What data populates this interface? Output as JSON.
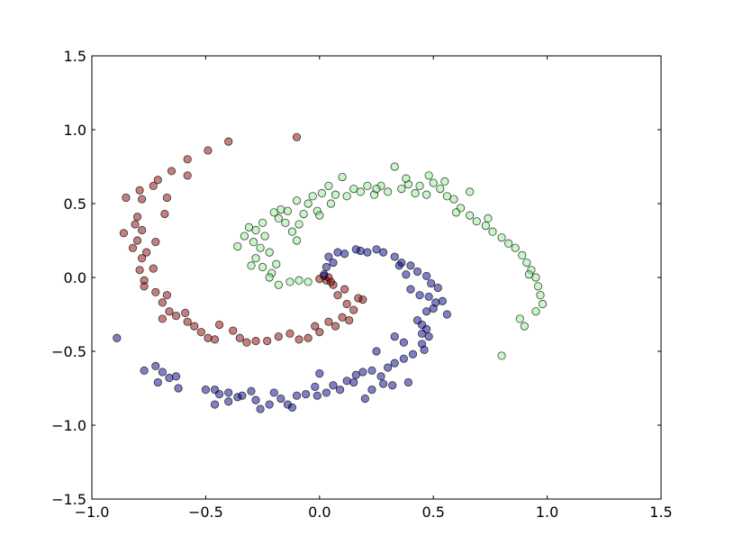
{
  "chart_data": {
    "type": "scatter",
    "title": "",
    "xlabel": "",
    "ylabel": "",
    "xlim": [
      -1.0,
      1.5
    ],
    "ylim": [
      -1.5,
      1.5
    ],
    "x_ticks": [
      "−1.0",
      "−0.5",
      "0.0",
      "0.5",
      "1.0",
      "1.5"
    ],
    "y_ticks": [
      "−1.5",
      "−1.0",
      "−0.5",
      "0.0",
      "0.5",
      "1.0",
      "1.5"
    ],
    "x_tick_values": [
      -1.0,
      -0.5,
      0.0,
      0.5,
      1.0,
      1.5
    ],
    "y_tick_values": [
      -1.5,
      -1.0,
      -0.5,
      0.0,
      0.5,
      1.0,
      1.5
    ],
    "grid": false,
    "series": [
      {
        "color": "#8b0000",
        "points": [
          [
            -0.1,
            0.95
          ],
          [
            -0.4,
            0.92
          ],
          [
            -0.49,
            0.86
          ],
          [
            -0.58,
            0.8
          ],
          [
            -0.65,
            0.72
          ],
          [
            -0.58,
            0.69
          ],
          [
            -0.71,
            0.66
          ],
          [
            -0.73,
            0.62
          ],
          [
            -0.79,
            0.59
          ],
          [
            -0.85,
            0.54
          ],
          [
            -0.78,
            0.53
          ],
          [
            -0.67,
            0.54
          ],
          [
            -0.68,
            0.43
          ],
          [
            -0.8,
            0.41
          ],
          [
            -0.81,
            0.36
          ],
          [
            -0.78,
            0.32
          ],
          [
            -0.86,
            0.3
          ],
          [
            -0.8,
            0.25
          ],
          [
            -0.82,
            0.2
          ],
          [
            -0.72,
            0.24
          ],
          [
            -0.76,
            0.17
          ],
          [
            -0.78,
            0.13
          ],
          [
            -0.79,
            0.05
          ],
          [
            -0.73,
            0.06
          ],
          [
            -0.77,
            -0.02
          ],
          [
            -0.77,
            -0.06
          ],
          [
            -0.72,
            -0.1
          ],
          [
            -0.69,
            -0.17
          ],
          [
            -0.67,
            -0.12
          ],
          [
            -0.66,
            -0.23
          ],
          [
            -0.69,
            -0.28
          ],
          [
            -0.63,
            -0.26
          ],
          [
            -0.59,
            -0.24
          ],
          [
            -0.58,
            -0.3
          ],
          [
            -0.55,
            -0.33
          ],
          [
            -0.52,
            -0.37
          ],
          [
            -0.49,
            -0.41
          ],
          [
            -0.46,
            -0.42
          ],
          [
            -0.44,
            -0.32
          ],
          [
            -0.38,
            -0.36
          ],
          [
            -0.35,
            -0.41
          ],
          [
            -0.32,
            -0.44
          ],
          [
            -0.28,
            -0.43
          ],
          [
            -0.23,
            -0.43
          ],
          [
            -0.18,
            -0.4
          ],
          [
            -0.13,
            -0.38
          ],
          [
            -0.09,
            -0.42
          ],
          [
            -0.05,
            -0.41
          ],
          [
            -0.02,
            -0.33
          ],
          [
            0.0,
            -0.37
          ],
          [
            0.04,
            -0.3
          ],
          [
            0.07,
            -0.33
          ],
          [
            0.1,
            -0.27
          ],
          [
            0.13,
            -0.29
          ],
          [
            0.15,
            -0.22
          ],
          [
            0.19,
            -0.15
          ],
          [
            0.12,
            -0.18
          ],
          [
            0.08,
            -0.12
          ],
          [
            0.06,
            -0.05
          ],
          [
            0.03,
            -0.02
          ],
          [
            0.0,
            -0.01
          ],
          [
            0.02,
            0.01
          ],
          [
            0.04,
            0.0
          ],
          [
            0.05,
            -0.03
          ],
          [
            0.17,
            -0.14
          ],
          [
            0.11,
            -0.08
          ]
        ]
      },
      {
        "color": "#00008b",
        "points": [
          [
            -0.89,
            -0.41
          ],
          [
            -0.77,
            -0.63
          ],
          [
            -0.72,
            -0.6
          ],
          [
            -0.69,
            -0.64
          ],
          [
            -0.66,
            -0.68
          ],
          [
            -0.63,
            -0.67
          ],
          [
            -0.71,
            -0.71
          ],
          [
            -0.62,
            -0.75
          ],
          [
            -0.5,
            -0.76
          ],
          [
            -0.46,
            -0.76
          ],
          [
            -0.44,
            -0.79
          ],
          [
            -0.4,
            -0.78
          ],
          [
            -0.36,
            -0.81
          ],
          [
            -0.46,
            -0.86
          ],
          [
            -0.4,
            -0.84
          ],
          [
            -0.34,
            -0.8
          ],
          [
            -0.3,
            -0.77
          ],
          [
            -0.28,
            -0.83
          ],
          [
            -0.26,
            -0.89
          ],
          [
            -0.22,
            -0.86
          ],
          [
            -0.2,
            -0.78
          ],
          [
            -0.17,
            -0.82
          ],
          [
            -0.14,
            -0.86
          ],
          [
            -0.12,
            -0.88
          ],
          [
            -0.1,
            -0.8
          ],
          [
            -0.06,
            -0.79
          ],
          [
            -0.02,
            -0.74
          ],
          [
            0.0,
            -0.65
          ],
          [
            0.03,
            -0.78
          ],
          [
            0.06,
            -0.73
          ],
          [
            0.09,
            -0.76
          ],
          [
            0.12,
            -0.7
          ],
          [
            0.15,
            -0.71
          ],
          [
            0.19,
            -0.64
          ],
          [
            0.23,
            -0.63
          ],
          [
            0.27,
            -0.67
          ],
          [
            0.3,
            -0.61
          ],
          [
            0.33,
            -0.58
          ],
          [
            0.28,
            -0.72
          ],
          [
            0.32,
            -0.73
          ],
          [
            0.37,
            -0.55
          ],
          [
            0.41,
            -0.52
          ],
          [
            0.45,
            -0.45
          ],
          [
            0.46,
            -0.49
          ],
          [
            0.37,
            -0.44
          ],
          [
            0.33,
            -0.4
          ],
          [
            0.25,
            -0.5
          ],
          [
            0.45,
            -0.38
          ],
          [
            0.48,
            -0.4
          ],
          [
            0.47,
            -0.35
          ],
          [
            0.45,
            -0.32
          ],
          [
            0.43,
            -0.29
          ],
          [
            0.47,
            -0.23
          ],
          [
            0.5,
            -0.21
          ],
          [
            0.51,
            -0.17
          ],
          [
            0.48,
            -0.13
          ],
          [
            0.52,
            -0.07
          ],
          [
            0.49,
            -0.04
          ],
          [
            0.47,
            0.01
          ],
          [
            0.43,
            0.04
          ],
          [
            0.4,
            0.08
          ],
          [
            0.36,
            0.1
          ],
          [
            0.33,
            0.14
          ],
          [
            0.28,
            0.17
          ],
          [
            0.25,
            0.19
          ],
          [
            0.21,
            0.17
          ],
          [
            0.18,
            0.18
          ],
          [
            0.16,
            0.19
          ],
          [
            0.11,
            0.16
          ],
          [
            0.08,
            0.17
          ],
          [
            0.04,
            0.14
          ],
          [
            0.03,
            0.07
          ],
          [
            0.06,
            0.1
          ],
          [
            0.02,
            0.02
          ],
          [
            0.35,
            0.08
          ],
          [
            0.54,
            -0.16
          ],
          [
            0.56,
            -0.25
          ],
          [
            0.44,
            -0.12
          ],
          [
            0.4,
            -0.08
          ],
          [
            0.38,
            0.02
          ],
          [
            -0.01,
            -0.8
          ],
          [
            0.16,
            -0.66
          ],
          [
            0.39,
            -0.71
          ],
          [
            0.2,
            -0.82
          ],
          [
            0.23,
            -0.76
          ]
        ]
      },
      {
        "color": "#90ee90",
        "points": [
          [
            -0.36,
            0.21
          ],
          [
            -0.33,
            0.28
          ],
          [
            -0.31,
            0.34
          ],
          [
            -0.29,
            0.24
          ],
          [
            -0.28,
            0.13
          ],
          [
            -0.26,
            0.2
          ],
          [
            -0.25,
            0.07
          ],
          [
            -0.24,
            0.28
          ],
          [
            -0.22,
            0.17
          ],
          [
            -0.21,
            0.03
          ],
          [
            -0.19,
            0.09
          ],
          [
            -0.18,
            0.4
          ],
          [
            -0.17,
            0.46
          ],
          [
            -0.15,
            0.37
          ],
          [
            -0.14,
            0.45
          ],
          [
            -0.12,
            0.31
          ],
          [
            -0.1,
            0.25
          ],
          [
            -0.09,
            0.36
          ],
          [
            -0.07,
            0.43
          ],
          [
            -0.05,
            0.5
          ],
          [
            -0.03,
            0.55
          ],
          [
            -0.01,
            0.45
          ],
          [
            0.01,
            0.57
          ],
          [
            0.04,
            0.62
          ],
          [
            0.07,
            0.56
          ],
          [
            0.1,
            0.68
          ],
          [
            0.12,
            0.55
          ],
          [
            0.15,
            0.6
          ],
          [
            0.18,
            0.58
          ],
          [
            0.21,
            0.62
          ],
          [
            0.24,
            0.56
          ],
          [
            0.27,
            0.62
          ],
          [
            0.3,
            0.58
          ],
          [
            0.33,
            0.75
          ],
          [
            0.36,
            0.6
          ],
          [
            0.39,
            0.63
          ],
          [
            0.42,
            0.57
          ],
          [
            0.44,
            0.62
          ],
          [
            0.47,
            0.56
          ],
          [
            0.5,
            0.64
          ],
          [
            0.53,
            0.6
          ],
          [
            0.56,
            0.55
          ],
          [
            0.59,
            0.53
          ],
          [
            0.62,
            0.47
          ],
          [
            0.66,
            0.42
          ],
          [
            0.69,
            0.38
          ],
          [
            0.73,
            0.35
          ],
          [
            0.76,
            0.31
          ],
          [
            0.8,
            0.27
          ],
          [
            0.83,
            0.23
          ],
          [
            0.86,
            0.2
          ],
          [
            0.89,
            0.15
          ],
          [
            0.91,
            0.1
          ],
          [
            0.93,
            0.05
          ],
          [
            0.95,
            0.0
          ],
          [
            0.96,
            -0.06
          ],
          [
            0.97,
            -0.12
          ],
          [
            0.98,
            -0.18
          ],
          [
            0.95,
            -0.23
          ],
          [
            0.88,
            -0.28
          ],
          [
            -0.05,
            -0.03
          ],
          [
            -0.09,
            -0.02
          ],
          [
            -0.13,
            -0.03
          ],
          [
            -0.18,
            -0.05
          ],
          [
            0.66,
            0.58
          ],
          [
            0.55,
            0.65
          ],
          [
            0.48,
            0.69
          ],
          [
            0.38,
            0.67
          ],
          [
            0.25,
            0.6
          ],
          [
            0.8,
            -0.53
          ],
          [
            0.9,
            -0.33
          ],
          [
            0.92,
            0.02
          ],
          [
            0.74,
            0.4
          ],
          [
            0.6,
            0.44
          ],
          [
            -0.25,
            0.37
          ],
          [
            -0.2,
            0.44
          ],
          [
            -0.1,
            0.52
          ],
          [
            0.05,
            0.5
          ],
          [
            0.0,
            0.42
          ],
          [
            -0.22,
            0.0
          ],
          [
            -0.3,
            0.08
          ],
          [
            -0.28,
            0.32
          ]
        ]
      }
    ]
  }
}
